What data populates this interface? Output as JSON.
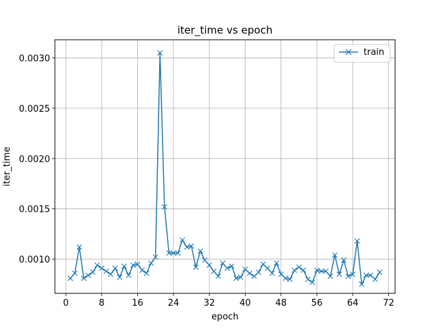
{
  "chart_data": {
    "type": "line",
    "title": "iter_time vs epoch",
    "xlabel": "epoch",
    "ylabel": "iter_time",
    "xlim": [
      -2.45,
      73.45
    ],
    "ylim": [
      0.00066,
      0.00318
    ],
    "xticks": [
      0,
      8,
      16,
      24,
      32,
      40,
      48,
      56,
      64,
      72
    ],
    "xtick_labels": [
      "0",
      "8",
      "16",
      "24",
      "32",
      "40",
      "48",
      "56",
      "64",
      "72"
    ],
    "yticks": [
      0.001,
      0.0015,
      0.002,
      0.0025,
      0.003
    ],
    "ytick_labels": [
      "0.0010",
      "0.0015",
      "0.0020",
      "0.0025",
      "0.0030"
    ],
    "grid": true,
    "legend_position": "top-right",
    "series": [
      {
        "name": "train",
        "color": "#1f77b4",
        "marker": "x",
        "x": [
          1,
          2,
          3,
          4,
          5,
          6,
          7,
          8,
          9,
          10,
          11,
          12,
          13,
          14,
          15,
          16,
          17,
          18,
          19,
          20,
          21,
          22,
          23,
          24,
          25,
          26,
          27,
          28,
          29,
          30,
          31,
          32,
          33,
          34,
          35,
          36,
          37,
          38,
          39,
          40,
          41,
          42,
          43,
          44,
          45,
          46,
          47,
          48,
          49,
          50,
          51,
          52,
          53,
          54,
          55,
          56,
          57,
          58,
          59,
          60,
          61,
          62,
          63,
          64,
          65,
          66,
          67,
          68,
          69,
          70
        ],
        "values": [
          0.00081,
          0.00086,
          0.00112,
          0.00081,
          0.00084,
          0.00087,
          0.00094,
          0.00091,
          0.00088,
          0.00085,
          0.00091,
          0.00082,
          0.00093,
          0.00084,
          0.00094,
          0.00095,
          0.00089,
          0.00086,
          0.00096,
          0.00102,
          0.00305,
          0.00152,
          0.00106,
          0.00106,
          0.00106,
          0.00119,
          0.00112,
          0.00113,
          0.00092,
          0.00108,
          0.00099,
          0.00094,
          0.00088,
          0.00083,
          0.00096,
          0.00091,
          0.00093,
          0.00081,
          0.00082,
          0.0009,
          0.00086,
          0.00083,
          0.00087,
          0.00095,
          0.00091,
          0.00086,
          0.00096,
          0.00085,
          0.00081,
          0.0008,
          0.00089,
          0.00092,
          0.00089,
          0.0008,
          0.00077,
          0.00089,
          0.00088,
          0.00088,
          0.00083,
          0.00104,
          0.00085,
          0.00099,
          0.00083,
          0.00085,
          0.00118,
          0.00075,
          0.00084,
          0.00084,
          0.0008,
          0.00087
        ]
      }
    ]
  }
}
